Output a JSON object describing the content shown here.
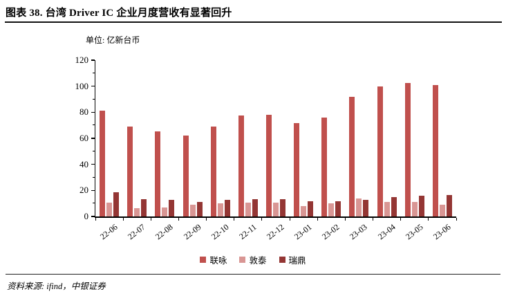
{
  "page": {
    "title": "图表 38. 台湾 Driver IC 企业月度营收有显著回升",
    "unit_label": "单位: 亿新台币",
    "source_label": "资料来源: ifind，中银证券"
  },
  "chart_data": {
    "type": "bar",
    "title": "台湾 Driver IC 企业月度营收",
    "ylabel": "亿新台币",
    "xlabel": "",
    "ylim": [
      0,
      120
    ],
    "ytick_step": 20,
    "yminor_step": 10,
    "grid": false,
    "legend_position": "bottom",
    "categories": [
      "22-06",
      "22-07",
      "22-08",
      "22-09",
      "22-10",
      "22-11",
      "22-12",
      "23-01",
      "23-02",
      "23-03",
      "23-04",
      "23-05",
      "23-06"
    ],
    "series": [
      {
        "id": "novatek",
        "name": "联咏",
        "color": "#C0504D",
        "values": [
          81.5,
          69,
          65.5,
          62,
          69,
          77.5,
          78,
          71.5,
          76,
          92,
          100,
          102.5,
          101
        ]
      },
      {
        "id": "focaltech",
        "name": "敦泰",
        "color": "#D99694",
        "values": [
          10.5,
          6.5,
          7,
          9,
          10,
          10.5,
          10.5,
          8,
          10,
          14,
          11,
          11,
          9
        ]
      },
      {
        "id": "raydium",
        "name": "瑞鼎",
        "color": "#943634",
        "values": [
          18.5,
          13.5,
          13,
          11,
          12.5,
          13.5,
          13.5,
          11.5,
          11.5,
          13,
          15,
          16,
          16.5
        ]
      }
    ]
  }
}
